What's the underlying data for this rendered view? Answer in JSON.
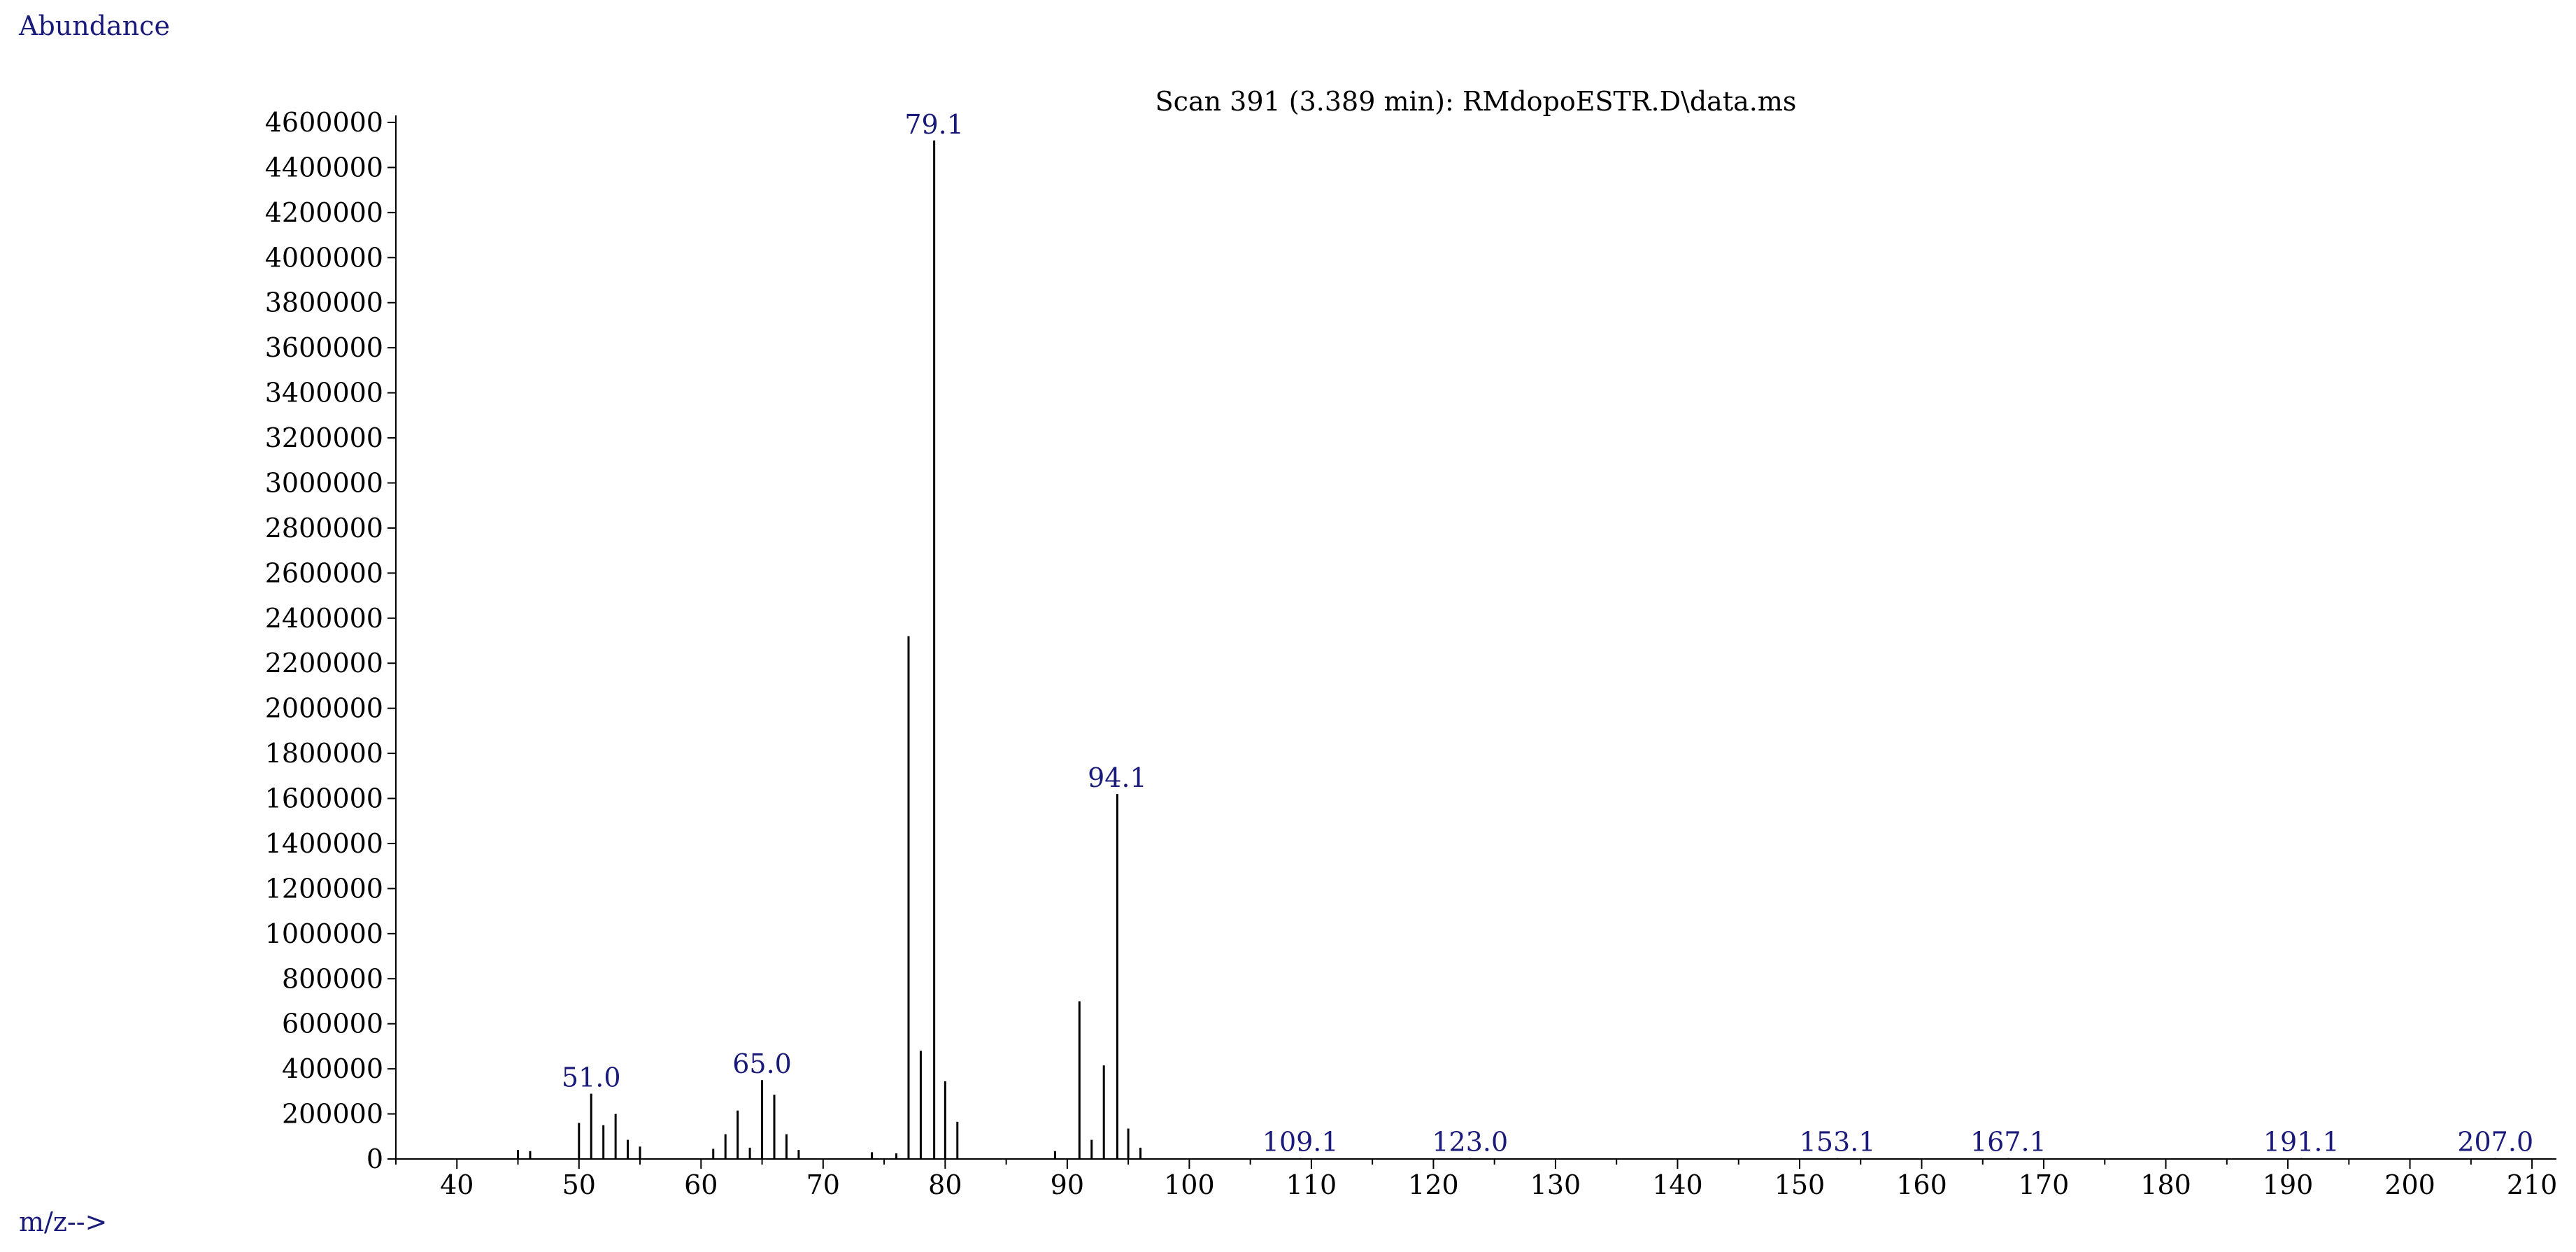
{
  "chart_data": {
    "type": "bar",
    "title": "Scan 391 (3.389 min): RMdopoESTR.D\\data.ms",
    "ylabel": "Abundance",
    "xlabel": "m/z-->",
    "xlim": [
      35,
      212
    ],
    "ylim": [
      0,
      4600000
    ],
    "x_ticks": [
      "40",
      "50",
      "60",
      "70",
      "80",
      "90",
      "100",
      "110",
      "120",
      "130",
      "140",
      "150",
      "160",
      "170",
      "180",
      "190",
      "200",
      "210"
    ],
    "y_ticks": [
      "0",
      "200000",
      "400000",
      "600000",
      "800000",
      "1000000",
      "1200000",
      "1400000",
      "1600000",
      "1800000",
      "2000000",
      "2200000",
      "2400000",
      "2600000",
      "2800000",
      "3000000",
      "3200000",
      "3400000",
      "3600000",
      "3800000",
      "4000000",
      "4200000",
      "4400000",
      "4600000"
    ],
    "peaks": [
      {
        "mz": 45,
        "abundance": 40000
      },
      {
        "mz": 46,
        "abundance": 35000
      },
      {
        "mz": 50,
        "abundance": 160000
      },
      {
        "mz": 51,
        "abundance": 290000,
        "label": "51.0"
      },
      {
        "mz": 52,
        "abundance": 150000
      },
      {
        "mz": 53,
        "abundance": 200000
      },
      {
        "mz": 54,
        "abundance": 85000
      },
      {
        "mz": 55,
        "abundance": 55000
      },
      {
        "mz": 61,
        "abundance": 45000
      },
      {
        "mz": 62,
        "abundance": 110000
      },
      {
        "mz": 63,
        "abundance": 215000
      },
      {
        "mz": 64,
        "abundance": 50000
      },
      {
        "mz": 65,
        "abundance": 350000,
        "label": "65.0"
      },
      {
        "mz": 66,
        "abundance": 285000
      },
      {
        "mz": 67,
        "abundance": 110000
      },
      {
        "mz": 68,
        "abundance": 40000
      },
      {
        "mz": 74,
        "abundance": 30000
      },
      {
        "mz": 76,
        "abundance": 25000
      },
      {
        "mz": 77,
        "abundance": 2320000
      },
      {
        "mz": 78,
        "abundance": 480000
      },
      {
        "mz": 79.1,
        "abundance": 4520000,
        "label": "79.1"
      },
      {
        "mz": 80,
        "abundance": 345000
      },
      {
        "mz": 81,
        "abundance": 165000
      },
      {
        "mz": 89,
        "abundance": 35000
      },
      {
        "mz": 91,
        "abundance": 700000
      },
      {
        "mz": 92,
        "abundance": 85000
      },
      {
        "mz": 93,
        "abundance": 415000
      },
      {
        "mz": 94.1,
        "abundance": 1620000,
        "label": "94.1"
      },
      {
        "mz": 95,
        "abundance": 135000
      },
      {
        "mz": 96,
        "abundance": 50000
      },
      {
        "mz": 109.1,
        "abundance": 4000,
        "label": "109.1"
      },
      {
        "mz": 123.0,
        "abundance": 4000,
        "label": "123.0"
      },
      {
        "mz": 153.1,
        "abundance": 4000,
        "label": "153.1"
      },
      {
        "mz": 167.1,
        "abundance": 4000,
        "label": "167.1"
      },
      {
        "mz": 191.1,
        "abundance": 4000,
        "label": "191.1"
      },
      {
        "mz": 207.0,
        "abundance": 4000,
        "label": "207.0"
      }
    ],
    "colors": {
      "axis": "#000000",
      "bars": "#000000",
      "labels": "#1a1a7a"
    }
  }
}
